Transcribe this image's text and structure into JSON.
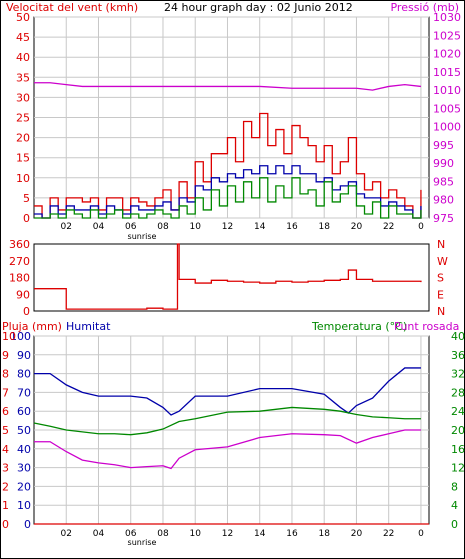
{
  "colors": {
    "wind": "#dd0000",
    "pressure": "#cc00cc",
    "wind_dir": "#dd0000",
    "rain": "#dd0000",
    "humidity": "#0000aa",
    "temperature": "#008800",
    "dewpoint": "#cc00cc",
    "grid": "#c8c8c8",
    "axis": "#000000"
  },
  "chart_data": [
    {
      "type": "line",
      "title": "24 hour graph day : 02 Junio 2012",
      "left_label": "Velocitat del vent (kmh)",
      "right_label": "Pressió (mb)",
      "y_left_ticks": [
        "0",
        "5",
        "10",
        "15",
        "20",
        "25",
        "30",
        "35",
        "40",
        "45",
        "50"
      ],
      "ylim_left": [
        0,
        50
      ],
      "y_right_ticks": [
        "975",
        "980",
        "985",
        "990",
        "995",
        "1000",
        "1005",
        "1010",
        "1015",
        "1020",
        "1025",
        "1030"
      ],
      "ylim_right": [
        975,
        1030
      ],
      "x_ticks": [
        {
          "h": 2,
          "l": "02"
        },
        {
          "h": 4,
          "l": "04"
        },
        {
          "h": 6,
          "l": "06"
        },
        {
          "h": 8,
          "l": "08"
        },
        {
          "h": 10,
          "l": "10"
        },
        {
          "h": 12,
          "l": "12"
        },
        {
          "h": 14,
          "l": "14"
        },
        {
          "h": 16,
          "l": "16"
        },
        {
          "h": 18,
          "l": "18"
        },
        {
          "h": 20,
          "l": "20"
        },
        {
          "h": 22,
          "l": "22"
        },
        {
          "h": 24,
          "l": "0"
        }
      ],
      "xlim": [
        0,
        24.5
      ],
      "annotation": "sunrise",
      "annotation_x": 6.7,
      "series": [
        {
          "name": "gust",
          "color_key": "wind",
          "axis": "left",
          "stepped": true,
          "x": [
            0,
            0.5,
            1,
            1.5,
            2,
            2.5,
            3,
            3.5,
            4,
            4.5,
            5,
            5.5,
            6,
            6.5,
            7,
            7.5,
            8,
            8.5,
            9,
            9.5,
            10,
            10.5,
            11,
            11.5,
            12,
            12.5,
            13,
            13.5,
            14,
            14.5,
            15,
            15.5,
            16,
            16.5,
            17,
            17.5,
            18,
            18.5,
            19,
            19.5,
            20,
            20.5,
            21,
            21.5,
            22,
            22.5,
            23,
            23.5,
            24
          ],
          "y": [
            3,
            0,
            5,
            2,
            5,
            5,
            4,
            5,
            2,
            5,
            5,
            2,
            5,
            4,
            3,
            5,
            7,
            2,
            9,
            5,
            14,
            9,
            16,
            16,
            20,
            14,
            24,
            20,
            26,
            18,
            22,
            16,
            23,
            20,
            18,
            14,
            18,
            11,
            14,
            20,
            11,
            7,
            9,
            5,
            7,
            5,
            3,
            0,
            7
          ]
        },
        {
          "name": "average",
          "color_key": "humidity",
          "axis": "left",
          "stepped": true,
          "x": [
            0,
            0.5,
            1,
            1.5,
            2,
            2.5,
            3,
            3.5,
            4,
            4.5,
            5,
            5.5,
            6,
            6.5,
            7,
            7.5,
            8,
            8.5,
            9,
            9.5,
            10,
            10.5,
            11,
            11.5,
            12,
            12.5,
            13,
            13.5,
            14,
            14.5,
            15,
            15.5,
            16,
            16.5,
            17,
            17.5,
            18,
            18.5,
            19,
            19.5,
            20,
            20.5,
            21,
            21.5,
            22,
            22.5,
            23,
            23.5,
            24
          ],
          "y": [
            1,
            0,
            3,
            1,
            3,
            2,
            2,
            3,
            1,
            3,
            2,
            1,
            3,
            2,
            2,
            3,
            4,
            2,
            5,
            4,
            8,
            7,
            10,
            9,
            11,
            10,
            12,
            11,
            13,
            11,
            13,
            11,
            13,
            11,
            11,
            9,
            10,
            7,
            8,
            9,
            6,
            5,
            5,
            3,
            4,
            3,
            2,
            0,
            3
          ]
        },
        {
          "name": "wind",
          "color_key": "temperature",
          "axis": "left",
          "stepped": true,
          "x": [
            0,
            0.5,
            1,
            1.5,
            2,
            2.5,
            3,
            3.5,
            4,
            4.5,
            5,
            5.5,
            6,
            6.5,
            7,
            7.5,
            8,
            8.5,
            9,
            9.5,
            10,
            10.5,
            11,
            11.5,
            12,
            12.5,
            13,
            13.5,
            14,
            14.5,
            15,
            15.5,
            16,
            16.5,
            17,
            17.5,
            18,
            18.5,
            19,
            19.5,
            20,
            20.5,
            21,
            21.5,
            22,
            22.5,
            23,
            23.5,
            24
          ],
          "y": [
            0,
            0,
            1,
            0,
            2,
            1,
            0,
            2,
            0,
            1,
            2,
            0,
            1,
            0,
            1,
            2,
            1,
            0,
            3,
            1,
            5,
            2,
            7,
            3,
            8,
            4,
            9,
            5,
            10,
            4,
            8,
            5,
            10,
            6,
            7,
            3,
            9,
            4,
            6,
            8,
            3,
            1,
            4,
            0,
            3,
            1,
            1,
            0,
            2
          ]
        },
        {
          "name": "pressure",
          "color_key": "pressure",
          "axis": "right",
          "stepped": false,
          "x": [
            0,
            1,
            2,
            3,
            4,
            5,
            6,
            8,
            10,
            12,
            14,
            16,
            18,
            19,
            20,
            21,
            22,
            23,
            24
          ],
          "y": [
            1012,
            1012,
            1011.5,
            1011,
            1011,
            1011,
            1011,
            1011,
            1011,
            1011,
            1011,
            1010.5,
            1010.5,
            1010.5,
            1010.5,
            1010,
            1011,
            1011.5,
            1011
          ]
        }
      ]
    },
    {
      "type": "line",
      "y_left_ticks": [
        "360",
        "270",
        "180",
        "90",
        "0"
      ],
      "ylim_left": [
        0,
        360
      ],
      "compass_labels": [
        "N",
        "W",
        "S",
        "E",
        "N"
      ],
      "series": [
        {
          "name": "wind direction",
          "color_key": "wind_dir",
          "axis": "left",
          "stepped": true,
          "x": [
            0,
            1.5,
            2,
            6,
            7,
            8,
            8.8,
            8.9,
            9,
            10,
            11,
            12,
            13,
            14,
            15,
            16,
            17,
            18,
            19,
            19.5,
            20,
            21,
            24
          ],
          "y": [
            120,
            120,
            10,
            10,
            15,
            10,
            10,
            360,
            170,
            150,
            165,
            160,
            155,
            150,
            160,
            155,
            160,
            165,
            170,
            220,
            170,
            160,
            155
          ]
        }
      ]
    },
    {
      "type": "line",
      "left_label": "Pluja (mm)",
      "humidity_label": "Humitat",
      "right_label": "Temperatura (°C)",
      "dewpoint_label": "Punt rosada",
      "y_rain_ticks": [
        "0",
        "1",
        "2",
        "3",
        "4",
        "5",
        "6",
        "7",
        "8",
        "9",
        "10"
      ],
      "ylim_rain": [
        0,
        10
      ],
      "y_hum_ticks": [
        "0",
        "10",
        "20",
        "30",
        "40",
        "50",
        "60",
        "70",
        "80",
        "90",
        "100"
      ],
      "ylim_hum": [
        0,
        100
      ],
      "y_right_ticks": [
        "0",
        "4",
        "8",
        "12",
        "16",
        "20",
        "24",
        "28",
        "32",
        "36",
        "40"
      ],
      "ylim_right": [
        0,
        40
      ],
      "x_ticks": [
        {
          "h": 2,
          "l": "02"
        },
        {
          "h": 4,
          "l": "04"
        },
        {
          "h": 6,
          "l": "06"
        },
        {
          "h": 8,
          "l": "08"
        },
        {
          "h": 10,
          "l": "10"
        },
        {
          "h": 12,
          "l": "12"
        },
        {
          "h": 14,
          "l": "14"
        },
        {
          "h": 16,
          "l": "16"
        },
        {
          "h": 18,
          "l": "18"
        },
        {
          "h": 20,
          "l": "20"
        },
        {
          "h": 22,
          "l": "22"
        },
        {
          "h": 24,
          "l": "0"
        }
      ],
      "xlim": [
        0,
        24.5
      ],
      "annotation": "sunrise",
      "annotation_x": 6.7,
      "series": [
        {
          "name": "Pluja",
          "color_key": "rain",
          "axis": "rain",
          "stepped": false,
          "x": [
            0,
            24.5
          ],
          "y": [
            0,
            0
          ]
        },
        {
          "name": "Humitat",
          "color_key": "humidity",
          "axis": "hum",
          "stepped": false,
          "x": [
            0,
            1,
            2,
            3,
            4,
            5,
            6,
            7,
            8,
            8.5,
            9,
            10,
            12,
            14,
            16,
            18,
            19,
            19.5,
            20,
            21,
            22,
            23,
            24
          ],
          "y": [
            80,
            80,
            74,
            70,
            68,
            68,
            68,
            67,
            62,
            58,
            60,
            68,
            68,
            72,
            72,
            69,
            62,
            59,
            63,
            67,
            76,
            83,
            83
          ]
        },
        {
          "name": "Temperatura",
          "color_key": "temperature",
          "axis": "right",
          "stepped": false,
          "x": [
            0,
            1,
            2,
            3,
            4,
            5,
            6,
            7,
            8,
            9,
            10,
            12,
            14,
            16,
            18,
            19,
            20,
            21,
            22,
            23,
            24
          ],
          "y": [
            21.5,
            20.8,
            20,
            19.6,
            19.2,
            19.2,
            19,
            19.4,
            20.2,
            21.8,
            22.4,
            23.8,
            24,
            24.8,
            24.4,
            24,
            23.3,
            22.8,
            22.6,
            22.4,
            22.4
          ]
        },
        {
          "name": "Punt rosada",
          "color_key": "dewpoint",
          "axis": "right",
          "stepped": false,
          "x": [
            0,
            1,
            2,
            3,
            4,
            5,
            6,
            7,
            8,
            8.5,
            9,
            10,
            12,
            14,
            16,
            18,
            19,
            20,
            21,
            22,
            23,
            24
          ],
          "y": [
            17.5,
            17.5,
            15.4,
            13.6,
            13,
            12.6,
            12,
            12.2,
            12.4,
            11.8,
            14,
            15.8,
            16.4,
            18.4,
            19.2,
            19,
            18.8,
            17.2,
            18.4,
            19.2,
            20,
            20
          ]
        }
      ]
    }
  ]
}
